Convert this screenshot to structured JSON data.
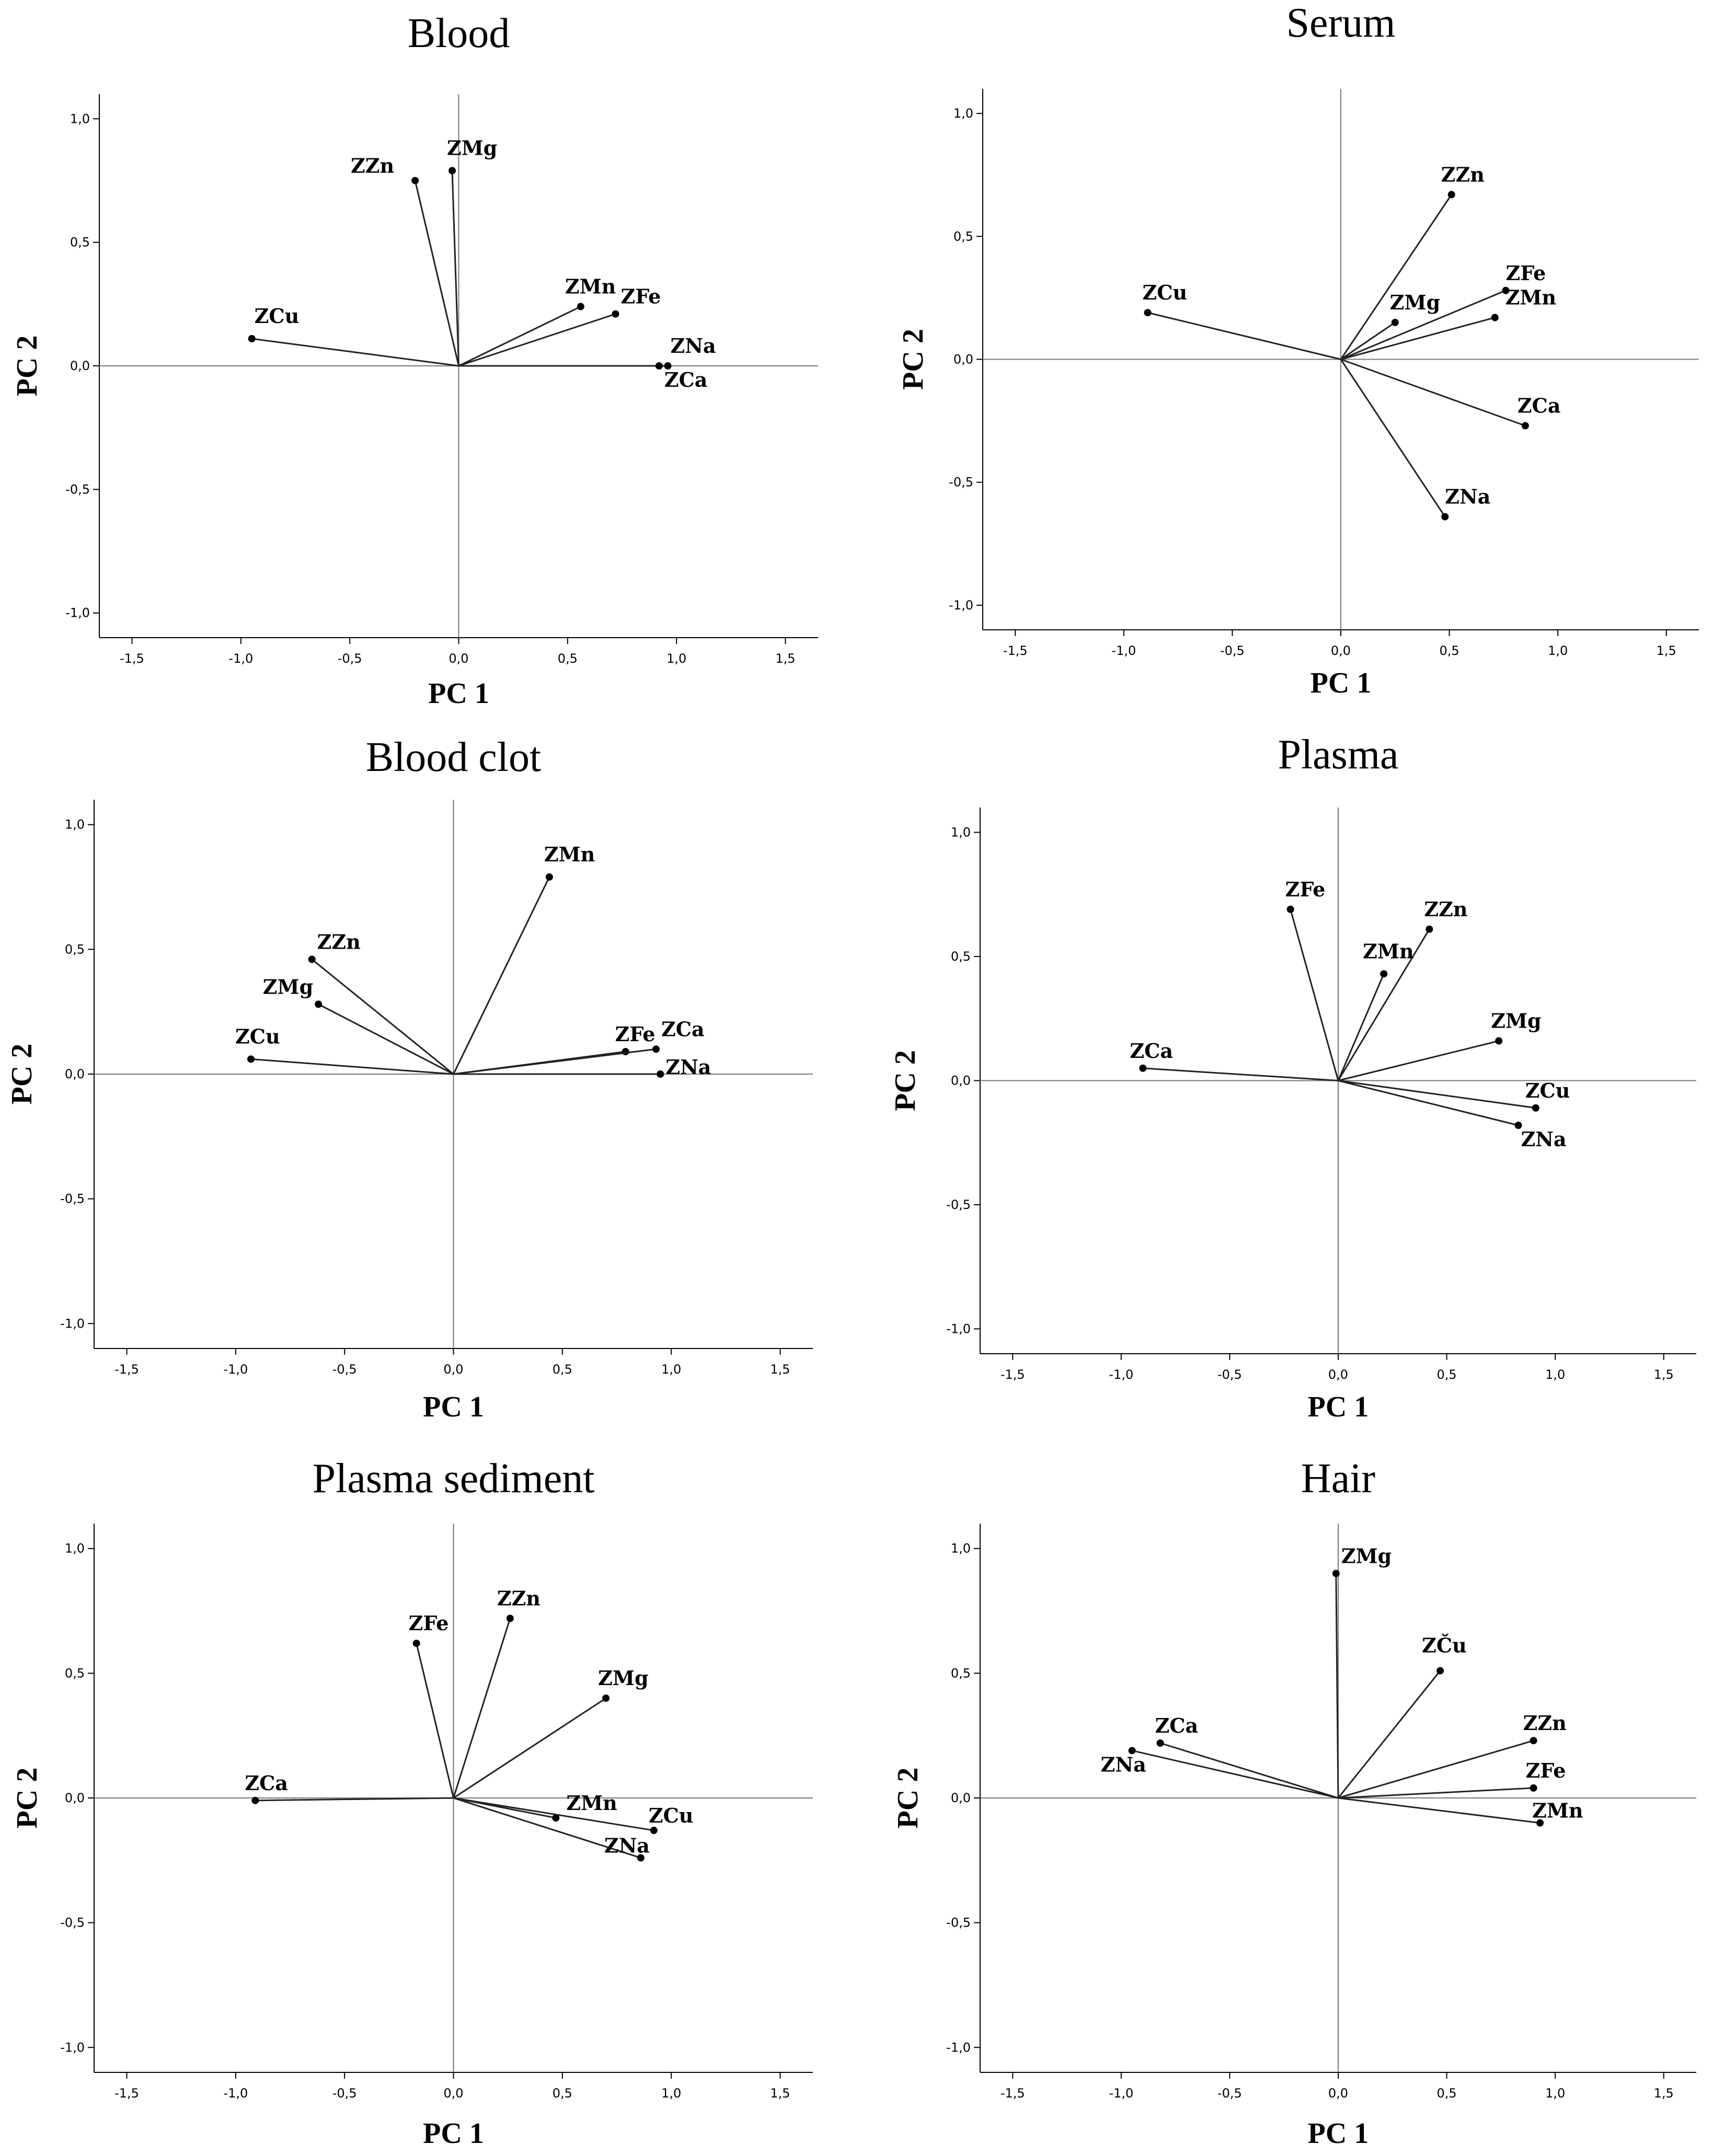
{
  "figure": {
    "chart_data": [
      {
        "type": "scatter",
        "title": "Blood",
        "xlabel": "PC 1",
        "ylabel": "PC 2",
        "xlim": [
          -1.65,
          1.65
        ],
        "ylim": [
          -1.1,
          1.1
        ],
        "x_ticks": [
          "-1,5",
          "-1,0",
          "-0,5",
          "0,0",
          "0,5",
          "1,0",
          "1,5"
        ],
        "y_ticks": [
          "1,0",
          "0,5",
          "0,0",
          "-0,5",
          "-1,0"
        ],
        "points": [
          {
            "label": "ZZn",
            "x": -0.2,
            "y": 0.75
          },
          {
            "label": "ZMg",
            "x": -0.03,
            "y": 0.79
          },
          {
            "label": "ZMn",
            "x": 0.56,
            "y": 0.24
          },
          {
            "label": "ZFe",
            "x": 0.72,
            "y": 0.21
          },
          {
            "label": "ZCu",
            "x": -0.95,
            "y": 0.11
          },
          {
            "label": "ZNa",
            "x": 0.96,
            "y": 0.0
          },
          {
            "label": "ZCa",
            "x": 0.92,
            "y": 0.0
          }
        ]
      },
      {
        "type": "scatter",
        "title": "Serum",
        "xlabel": "PC 1",
        "ylabel": "PC 2",
        "xlim": [
          -1.65,
          1.65
        ],
        "ylim": [
          -1.1,
          1.1
        ],
        "x_ticks": [
          "-1,5",
          "-1,0",
          "-0,5",
          "0,0",
          "0,5",
          "1,0",
          "1,5"
        ],
        "y_ticks": [
          "1,0",
          "0,5",
          "0,0",
          "-0,5",
          "-1,0"
        ],
        "points": [
          {
            "label": "ZZn",
            "x": 0.51,
            "y": 0.67
          },
          {
            "label": "ZFe",
            "x": 0.76,
            "y": 0.28
          },
          {
            "label": "ZMn",
            "x": 0.71,
            "y": 0.17
          },
          {
            "label": "ZMg",
            "x": 0.25,
            "y": 0.15
          },
          {
            "label": "ZCu",
            "x": -0.89,
            "y": 0.19
          },
          {
            "label": "ZCa",
            "x": 0.85,
            "y": -0.27
          },
          {
            "label": "ZNa",
            "x": 0.48,
            "y": -0.64
          }
        ]
      },
      {
        "type": "scatter",
        "title": "Blood clot",
        "xlabel": "PC 1",
        "ylabel": "PC 2",
        "xlim": [
          -1.65,
          1.65
        ],
        "ylim": [
          -1.1,
          1.1
        ],
        "x_ticks": [
          "-1,5",
          "-1,0",
          "-0,5",
          "0,0",
          "0,5",
          "1,0",
          "1,5"
        ],
        "y_ticks": [
          "1,0",
          "0,5",
          "0,0",
          "-0,5",
          "-1,0"
        ],
        "points": [
          {
            "label": "ZMn",
            "x": 0.44,
            "y": 0.79
          },
          {
            "label": "ZZn",
            "x": -0.65,
            "y": 0.46
          },
          {
            "label": "ZMg",
            "x": -0.62,
            "y": 0.28
          },
          {
            "label": "ZCu",
            "x": -0.93,
            "y": 0.06
          },
          {
            "label": "ZFe",
            "x": 0.79,
            "y": 0.09
          },
          {
            "label": "ZCa",
            "x": 0.93,
            "y": 0.1
          },
          {
            "label": "ZNa",
            "x": 0.95,
            "y": 0.0
          }
        ]
      },
      {
        "type": "scatter",
        "title": "Plasma",
        "xlabel": "PC 1",
        "ylabel": "PC 2",
        "xlim": [
          -1.65,
          1.65
        ],
        "ylim": [
          -1.1,
          1.1
        ],
        "x_ticks": [
          "-1,5",
          "-1,0",
          "-0,5",
          "0,0",
          "0,5",
          "1,0",
          "1,5"
        ],
        "y_ticks": [
          "1,0",
          "0,5",
          "0,0",
          "-0,5",
          "-1,0"
        ],
        "points": [
          {
            "label": "ZFe",
            "x": -0.22,
            "y": 0.69
          },
          {
            "label": "ZZn",
            "x": 0.42,
            "y": 0.61
          },
          {
            "label": "ZMn",
            "x": 0.21,
            "y": 0.43
          },
          {
            "label": "ZMg",
            "x": 0.74,
            "y": 0.16
          },
          {
            "label": "ZCa",
            "x": -0.9,
            "y": 0.05
          },
          {
            "label": "ZCu",
            "x": 0.91,
            "y": -0.11
          },
          {
            "label": "ZNa",
            "x": 0.83,
            "y": -0.18
          }
        ]
      },
      {
        "type": "scatter",
        "title": "Plasma sediment",
        "xlabel": "PC 1",
        "ylabel": "PC 2",
        "xlim": [
          -1.65,
          1.65
        ],
        "ylim": [
          -1.1,
          1.1
        ],
        "x_ticks": [
          "-1,5",
          "-1,0",
          "-0,5",
          "0,0",
          "0,5",
          "1,0",
          "1,5"
        ],
        "y_ticks": [
          "1,0",
          "0,5",
          "0,0",
          "-0,5",
          "-1,0"
        ],
        "points": [
          {
            "label": "ZZn",
            "x": 0.26,
            "y": 0.72
          },
          {
            "label": "ZFe",
            "x": -0.17,
            "y": 0.62
          },
          {
            "label": "ZMg",
            "x": 0.7,
            "y": 0.4
          },
          {
            "label": "ZCa",
            "x": -0.91,
            "y": -0.01
          },
          {
            "label": "ZMn",
            "x": 0.47,
            "y": -0.08
          },
          {
            "label": "ZCu",
            "x": 0.92,
            "y": -0.13
          },
          {
            "label": "ZNa",
            "x": 0.86,
            "y": -0.24
          }
        ]
      },
      {
        "type": "scatter",
        "title": "Hair",
        "xlabel": "PC 1",
        "ylabel": "PC 2",
        "xlim": [
          -1.65,
          1.65
        ],
        "ylim": [
          -1.1,
          1.1
        ],
        "x_ticks": [
          "-1,5",
          "-1,0",
          "-0,5",
          "0,0",
          "0,5",
          "1,0",
          "1,5"
        ],
        "y_ticks": [
          "1,0",
          "0,5",
          "0,0",
          "-0,5",
          "-1,0"
        ],
        "points": [
          {
            "label": "ZMg",
            "x": -0.01,
            "y": 0.9
          },
          {
            "label": "ZČu",
            "x": 0.47,
            "y": 0.51
          },
          {
            "label": "ZZn",
            "x": 0.9,
            "y": 0.23
          },
          {
            "label": "ZFe",
            "x": 0.9,
            "y": 0.04
          },
          {
            "label": "ZMn",
            "x": 0.93,
            "y": -0.1
          },
          {
            "label": "ZCa",
            "x": -0.82,
            "y": 0.22
          },
          {
            "label": "ZNa",
            "x": -0.95,
            "y": 0.19
          }
        ]
      }
    ]
  }
}
